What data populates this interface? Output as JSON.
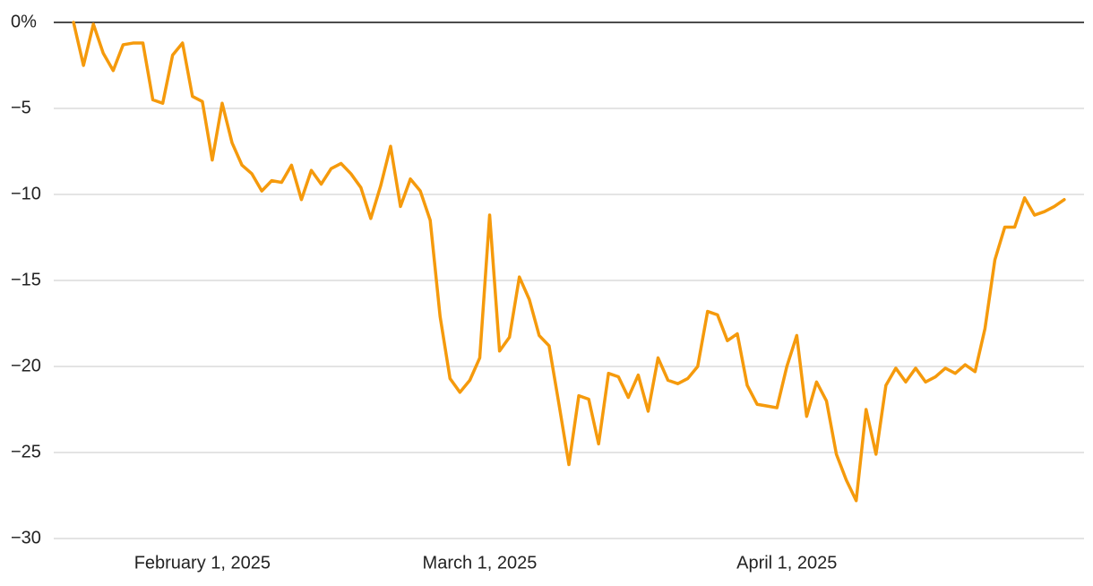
{
  "chart_data": {
    "type": "line",
    "x": [
      "2025-01-19",
      "2025-01-20",
      "2025-01-21",
      "2025-01-22",
      "2025-01-23",
      "2025-01-24",
      "2025-01-25",
      "2025-01-26",
      "2025-01-27",
      "2025-01-28",
      "2025-01-29",
      "2025-01-30",
      "2025-01-31",
      "2025-02-01",
      "2025-02-02",
      "2025-02-03",
      "2025-02-04",
      "2025-02-05",
      "2025-02-06",
      "2025-02-07",
      "2025-02-08",
      "2025-02-09",
      "2025-02-10",
      "2025-02-11",
      "2025-02-12",
      "2025-02-13",
      "2025-02-14",
      "2025-02-15",
      "2025-02-16",
      "2025-02-17",
      "2025-02-18",
      "2025-02-19",
      "2025-02-20",
      "2025-02-21",
      "2025-02-22",
      "2025-02-23",
      "2025-02-24",
      "2025-02-25",
      "2025-02-26",
      "2025-02-27",
      "2025-02-28",
      "2025-03-01",
      "2025-03-02",
      "2025-03-03",
      "2025-03-04",
      "2025-03-05",
      "2025-03-06",
      "2025-03-07",
      "2025-03-08",
      "2025-03-09",
      "2025-03-10",
      "2025-03-11",
      "2025-03-12",
      "2025-03-13",
      "2025-03-14",
      "2025-03-15",
      "2025-03-16",
      "2025-03-17",
      "2025-03-18",
      "2025-03-19",
      "2025-03-20",
      "2025-03-21",
      "2025-03-22",
      "2025-03-23",
      "2025-03-24",
      "2025-03-25",
      "2025-03-26",
      "2025-03-27",
      "2025-03-28",
      "2025-03-29",
      "2025-03-30",
      "2025-03-31",
      "2025-04-01",
      "2025-04-02",
      "2025-04-03",
      "2025-04-04",
      "2025-04-05",
      "2025-04-06",
      "2025-04-07",
      "2025-04-08",
      "2025-04-09",
      "2025-04-10",
      "2025-04-11",
      "2025-04-12",
      "2025-04-13",
      "2025-04-14",
      "2025-04-15",
      "2025-04-16",
      "2025-04-17",
      "2025-04-18",
      "2025-04-19",
      "2025-04-20",
      "2025-04-21",
      "2025-04-22",
      "2025-04-23",
      "2025-04-24",
      "2025-04-25",
      "2025-04-26",
      "2025-04-27",
      "2025-04-28",
      "2025-04-29"
    ],
    "series": [
      {
        "color": "#f59a0c",
        "values": [
          0,
          -2.5,
          -0.1,
          -1.8,
          -2.8,
          -1.3,
          -1.2,
          -1.2,
          -4.5,
          -4.7,
          -1.9,
          -1.2,
          -4.3,
          -4.6,
          -8.0,
          -4.7,
          -7.0,
          -8.3,
          -8.8,
          -9.8,
          -9.2,
          -9.3,
          -8.3,
          -10.3,
          -8.6,
          -9.4,
          -8.5,
          -8.2,
          -8.8,
          -9.6,
          -11.4,
          -9.5,
          -7.2,
          -10.7,
          -9.1,
          -9.8,
          -11.5,
          -17.1,
          -20.7,
          -21.5,
          -20.8,
          -19.5,
          -11.2,
          -19.1,
          -18.3,
          -14.8,
          -16.1,
          -18.2,
          -18.8,
          -22.2,
          -25.7,
          -21.7,
          -21.9,
          -24.5,
          -20.4,
          -20.6,
          -21.8,
          -20.5,
          -22.6,
          -19.5,
          -20.8,
          -21.0,
          -20.7,
          -20.0,
          -16.8,
          -17.0,
          -18.5,
          -18.1,
          -21.1,
          -22.2,
          -22.3,
          -22.4,
          -20.0,
          -18.2,
          -22.9,
          -20.9,
          -22.0,
          -25.1,
          -26.6,
          -27.8,
          -22.5,
          -25.1,
          -21.1,
          -20.1,
          -20.9,
          -20.1,
          -20.9,
          -20.6,
          -20.1,
          -20.4,
          -19.9,
          -20.3,
          -17.8,
          -13.8,
          -11.9,
          -11.9,
          -10.2,
          -11.2,
          -11.0,
          -10.7,
          -10.3
        ]
      }
    ],
    "xlim": [
      "2025-01-17",
      "2025-05-01"
    ],
    "xticks": [
      {
        "value": "2025-02-01",
        "label": "February 1, 2025"
      },
      {
        "value": "2025-03-01",
        "label": "March 1, 2025"
      },
      {
        "value": "2025-04-01",
        "label": "April 1, 2025"
      }
    ],
    "ylim": [
      -30,
      0
    ],
    "yticks": [
      {
        "value": 0,
        "label": "0%"
      },
      {
        "value": -5,
        "label": "−5"
      },
      {
        "value": -10,
        "label": "−10"
      },
      {
        "value": -15,
        "label": "−15"
      },
      {
        "value": -20,
        "label": "−20"
      },
      {
        "value": -25,
        "label": "−25"
      },
      {
        "value": -30,
        "label": "−30"
      }
    ],
    "grid": true
  }
}
